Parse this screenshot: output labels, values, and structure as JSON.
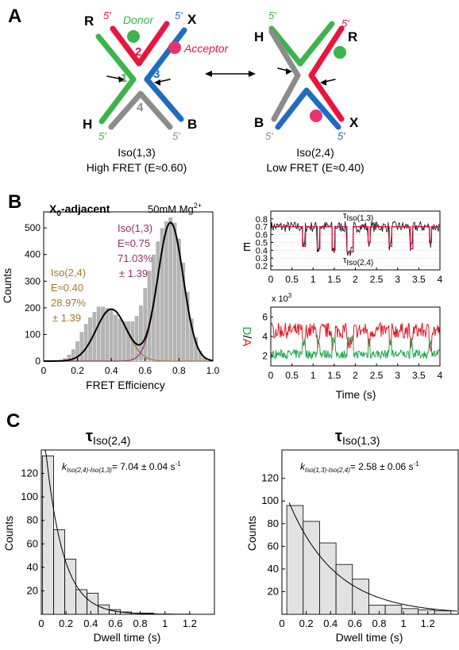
{
  "panels": {
    "A": {
      "letter": "A",
      "left": {
        "corners": {
          "R": "R",
          "X": "X",
          "H": "H",
          "B": "B"
        },
        "five_prime": "5′",
        "strands": {
          "s1": "1",
          "s2": "2",
          "s3": "3",
          "s4": "4"
        },
        "donor": "Donor",
        "acceptor": "Acceptor",
        "name": "Iso(1,3)",
        "caption": "High FRET (E≈0.60)"
      },
      "right": {
        "corners": {
          "H": "H",
          "R": "R",
          "B": "B",
          "X": "X"
        },
        "five_prime": "5′",
        "name": "Iso(2,4)",
        "caption": "Low FRET (E≈0.40)"
      },
      "colors": {
        "strand1": "#3cb44b",
        "strand2": "#e8153d",
        "strand3": "#1f6cc0",
        "strand4": "#8c8c8c",
        "donor": "#3cb44b",
        "acceptor": "#e8336e"
      }
    },
    "B": {
      "letter": "B",
      "histogram": {
        "title": "X",
        "title_sub": "0",
        "title_rest": "-adjacent",
        "condition": "50mM Mg",
        "condition_sup": "2+",
        "xlabel": "FRET Efficiency",
        "ylabel": "Counts",
        "iso13": {
          "line1": "Iso(1,3)",
          "line2": "E≈0.75",
          "line3": "71.03%",
          "line4": "± 1.39"
        },
        "iso24": {
          "line1": "Iso(2,4)",
          "line2": "E≈0.40",
          "line3": "28.97%",
          "line4": "± 1.39"
        },
        "xticks": [
          "0",
          "0.2",
          "0.4",
          "0.6",
          "0.8",
          "1.0"
        ],
        "yticks": [
          "0",
          "100",
          "200",
          "300",
          "400",
          "500"
        ],
        "colors": {
          "bar": "#b4b4b4",
          "fit": "#000000",
          "iso13": "#9b2d6e",
          "iso24": "#a07a2a"
        }
      },
      "traces": {
        "e_ylabel": "E",
        "da_ylabel": "D/A",
        "da_multiplier": "x 10",
        "da_multiplier_sup": "3",
        "xlabel": "Time (s)",
        "e_yticks": [
          "0.8",
          "0.7",
          "0.6",
          "0.5",
          "0.4",
          "0.3",
          "0.2"
        ],
        "da_yticks": [
          "2",
          "4",
          "6"
        ],
        "xticks": [
          "0",
          "0.5",
          "1",
          "1.5",
          "2",
          "2.5",
          "3",
          "3.5",
          "4"
        ],
        "tau13": "τ",
        "tau13_sub": "Iso(1,3)",
        "tau24": "τ",
        "tau24_sub": "Iso(2,4)",
        "colors": {
          "donor": "#1aa84a",
          "acceptor": "#e01b24",
          "e_raw": "#000000",
          "e_fit": "#d0103a"
        }
      }
    },
    "C": {
      "letter": "C",
      "left": {
        "title_tau": "τ",
        "title_sub": "Iso(2,4)",
        "k_prefix": "k",
        "k_sub": "Iso(2,4)-Iso(1,3)",
        "k_value": "= 7.04 ± 0.04 s",
        "k_unit_sup": "-1",
        "xlabel": "Dwell time (s)",
        "ylabel": "Counts",
        "xticks": [
          "0",
          "0.2",
          "0.4",
          "0.6",
          "0.8",
          "1",
          "1.2"
        ],
        "yticks": [
          "20",
          "40",
          "60",
          "80",
          "100",
          "120"
        ]
      },
      "right": {
        "title_tau": "τ",
        "title_sub": "Iso(1,3)",
        "k_prefix": "k",
        "k_sub": "Iso(1,3)-Iso(2,4)",
        "k_value": "= 2.58 ± 0.06 s",
        "k_unit_sup": "-1",
        "xlabel": "Dwell time (s)",
        "ylabel": "Counts",
        "xticks": [
          "0",
          "0.2",
          "0.4",
          "0.6",
          "0.8",
          "1",
          "1.2"
        ],
        "yticks": [
          "20",
          "40",
          "60",
          "80",
          "100",
          "120"
        ]
      }
    }
  },
  "chart_data": [
    {
      "type": "bar",
      "panel": "B-histogram",
      "xlabel": "FRET Efficiency",
      "ylabel": "Counts",
      "xlim": [
        0,
        1.0
      ],
      "ylim": [
        0,
        560
      ],
      "bin_centers": [
        0.1,
        0.125,
        0.15,
        0.175,
        0.2,
        0.225,
        0.25,
        0.275,
        0.3,
        0.325,
        0.35,
        0.375,
        0.4,
        0.425,
        0.45,
        0.475,
        0.5,
        0.525,
        0.55,
        0.575,
        0.6,
        0.625,
        0.65,
        0.675,
        0.7,
        0.725,
        0.75,
        0.775,
        0.8,
        0.825,
        0.85,
        0.875,
        0.9,
        0.925,
        0.95
      ],
      "values": [
        5,
        12,
        25,
        45,
        75,
        110,
        140,
        165,
        185,
        205,
        205,
        200,
        195,
        175,
        160,
        150,
        150,
        150,
        170,
        210,
        275,
        340,
        400,
        450,
        500,
        525,
        540,
        520,
        460,
        370,
        260,
        160,
        90,
        40,
        15
      ],
      "fit_components": [
        {
          "name": "Iso(1,3)",
          "center": 0.75,
          "amplitude": 520,
          "sigma": 0.075
        },
        {
          "name": "Iso(2,4)",
          "center": 0.4,
          "amplitude": 195,
          "sigma": 0.09
        }
      ]
    },
    {
      "type": "line",
      "panel": "B-E-trace",
      "xlabel": "Time (s)",
      "ylabel": "E",
      "xlim": [
        0,
        4
      ],
      "ylim": [
        0.15,
        0.9
      ],
      "levels": {
        "Iso(1,3)": 0.7,
        "Iso(2,4)": 0.4
      },
      "state_segments": [
        {
          "t_start": 0.0,
          "t_end": 0.75,
          "E": 0.7
        },
        {
          "t_start": 0.75,
          "t_end": 0.82,
          "E": 0.45
        },
        {
          "t_start": 0.82,
          "t_end": 1.1,
          "E": 0.7
        },
        {
          "t_start": 1.1,
          "t_end": 1.16,
          "E": 0.42
        },
        {
          "t_start": 1.16,
          "t_end": 1.45,
          "E": 0.7
        },
        {
          "t_start": 1.45,
          "t_end": 1.52,
          "E": 0.4
        },
        {
          "t_start": 1.52,
          "t_end": 1.8,
          "E": 0.7
        },
        {
          "t_start": 1.8,
          "t_end": 1.95,
          "E": 0.38
        },
        {
          "t_start": 1.95,
          "t_end": 2.3,
          "E": 0.7
        },
        {
          "t_start": 2.3,
          "t_end": 2.35,
          "E": 0.5
        },
        {
          "t_start": 2.35,
          "t_end": 2.8,
          "E": 0.7
        },
        {
          "t_start": 2.8,
          "t_end": 2.86,
          "E": 0.45
        },
        {
          "t_start": 2.86,
          "t_end": 3.3,
          "E": 0.7
        },
        {
          "t_start": 3.3,
          "t_end": 3.36,
          "E": 0.42
        },
        {
          "t_start": 3.36,
          "t_end": 3.75,
          "E": 0.7
        },
        {
          "t_start": 3.75,
          "t_end": 3.8,
          "E": 0.5
        },
        {
          "t_start": 3.8,
          "t_end": 4.0,
          "E": 0.7
        }
      ]
    },
    {
      "type": "line",
      "panel": "B-DA-trace",
      "xlabel": "Time (s)",
      "ylabel": "D/A (x 10^3)",
      "xlim": [
        0,
        4
      ],
      "ylim": [
        1,
        7
      ],
      "series": [
        {
          "name": "Acceptor",
          "mean": 4.6
        },
        {
          "name": "Donor",
          "mean": 2.2
        }
      ]
    },
    {
      "type": "bar",
      "panel": "C-left",
      "title": "τ Iso(2,4)",
      "xlabel": "Dwell time (s)",
      "ylabel": "Counts",
      "xlim": [
        0,
        1.4
      ],
      "ylim": [
        0,
        140
      ],
      "bin_edges": [
        0.01,
        0.1,
        0.19,
        0.28,
        0.37,
        0.46,
        0.55,
        0.64,
        0.73,
        0.82,
        0.91,
        1.0,
        1.09,
        1.18
      ],
      "values": [
        135,
        72,
        47,
        21,
        18,
        8,
        4,
        2,
        1,
        1,
        0,
        0,
        0
      ],
      "fit": {
        "type": "exponential",
        "rate": 7.04,
        "amplitude": 180
      }
    },
    {
      "type": "bar",
      "panel": "C-right",
      "title": "τ Iso(1,3)",
      "xlabel": "Dwell time (s)",
      "ylabel": "Counts",
      "xlim": [
        0,
        1.45
      ],
      "ylim": [
        0,
        145
      ],
      "bin_edges": [
        0.04,
        0.175,
        0.31,
        0.445,
        0.58,
        0.715,
        0.85,
        0.985,
        1.12,
        1.255,
        1.39
      ],
      "values": [
        96,
        82,
        63,
        44,
        31,
        8,
        8,
        5,
        4,
        3
      ],
      "fit": {
        "type": "exponential",
        "rate": 2.58,
        "amplitude": 115
      }
    }
  ]
}
